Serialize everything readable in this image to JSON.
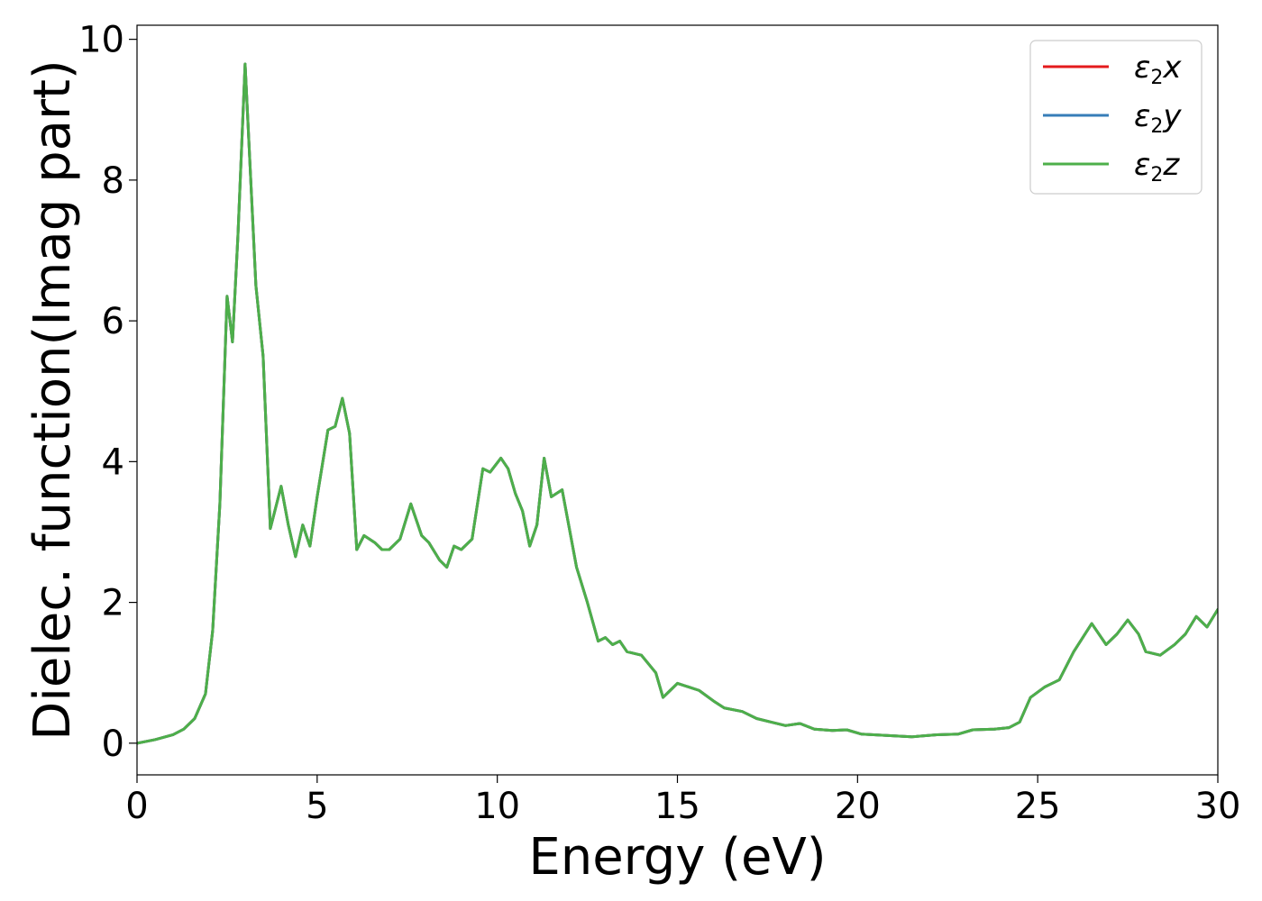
{
  "chart_data": {
    "type": "line",
    "title": "",
    "xlabel": "Energy (eV)",
    "ylabel": "Dielec. function(Imag part)",
    "xlim": [
      0,
      30
    ],
    "ylim": [
      -0.45,
      10.2
    ],
    "xticks": [
      0,
      5,
      10,
      15,
      20,
      25,
      30
    ],
    "xtick_labels": [
      "0",
      "5",
      "10",
      "15",
      "20",
      "25",
      "30"
    ],
    "yticks": [
      0,
      2,
      4,
      6,
      8,
      10
    ],
    "ytick_labels": [
      "0",
      "2",
      "4",
      "6",
      "8",
      "10"
    ],
    "grid": false,
    "legend_position": "top-right",
    "x": [
      0,
      0.5,
      1.0,
      1.3,
      1.6,
      1.9,
      2.1,
      2.3,
      2.5,
      2.65,
      2.8,
      3.0,
      3.3,
      3.5,
      3.7,
      4.0,
      4.2,
      4.4,
      4.6,
      4.8,
      5.0,
      5.3,
      5.5,
      5.7,
      5.9,
      6.1,
      6.3,
      6.6,
      6.8,
      7.0,
      7.3,
      7.6,
      7.9,
      8.1,
      8.4,
      8.6,
      8.8,
      9.0,
      9.3,
      9.6,
      9.8,
      10.1,
      10.3,
      10.5,
      10.7,
      10.9,
      11.1,
      11.3,
      11.5,
      11.8,
      12.0,
      12.2,
      12.5,
      12.8,
      13.0,
      13.2,
      13.4,
      13.6,
      14.0,
      14.4,
      14.6,
      14.8,
      15.0,
      15.3,
      15.6,
      16.0,
      16.3,
      16.8,
      17.2,
      17.6,
      18.0,
      18.4,
      18.8,
      19.3,
      19.7,
      20.1,
      20.8,
      21.5,
      22.2,
      22.8,
      23.2,
      23.8,
      24.2,
      24.5,
      24.8,
      25.2,
      25.6,
      26.0,
      26.5,
      26.9,
      27.2,
      27.5,
      27.8,
      28.0,
      28.4,
      28.8,
      29.1,
      29.4,
      29.7,
      30.0
    ],
    "series": [
      {
        "name": "ε₂x",
        "label_main": "ε",
        "label_sub": "2",
        "label_tail": "x",
        "color": "#e41a1c",
        "values": [
          0,
          0.05,
          0.12,
          0.2,
          0.35,
          0.7,
          1.6,
          3.4,
          6.35,
          5.7,
          7.2,
          9.65,
          6.5,
          5.5,
          3.05,
          3.65,
          3.1,
          2.65,
          3.1,
          2.8,
          3.5,
          4.45,
          4.5,
          4.9,
          4.4,
          2.75,
          2.95,
          2.85,
          2.75,
          2.75,
          2.9,
          3.4,
          2.95,
          2.85,
          2.6,
          2.5,
          2.8,
          2.75,
          2.9,
          3.9,
          3.85,
          4.05,
          3.9,
          3.55,
          3.3,
          2.8,
          3.1,
          4.05,
          3.5,
          3.6,
          3.05,
          2.5,
          2.0,
          1.45,
          1.5,
          1.4,
          1.45,
          1.3,
          1.25,
          1.0,
          0.65,
          0.75,
          0.85,
          0.8,
          0.75,
          0.6,
          0.5,
          0.45,
          0.35,
          0.3,
          0.25,
          0.28,
          0.2,
          0.18,
          0.19,
          0.13,
          0.11,
          0.09,
          0.12,
          0.13,
          0.19,
          0.2,
          0.22,
          0.3,
          0.65,
          0.8,
          0.9,
          1.3,
          1.7,
          1.4,
          1.55,
          1.75,
          1.55,
          1.3,
          1.25,
          1.4,
          1.55,
          1.8,
          1.65,
          1.9
        ]
      },
      {
        "name": "ε₂y",
        "label_main": "ε",
        "label_sub": "2",
        "label_tail": "y",
        "color": "#377eb8",
        "values": [
          0,
          0.05,
          0.12,
          0.2,
          0.35,
          0.7,
          1.6,
          3.4,
          6.35,
          5.7,
          7.2,
          9.65,
          6.5,
          5.5,
          3.05,
          3.65,
          3.1,
          2.65,
          3.1,
          2.8,
          3.5,
          4.45,
          4.5,
          4.9,
          4.4,
          2.75,
          2.95,
          2.85,
          2.75,
          2.75,
          2.9,
          3.4,
          2.95,
          2.85,
          2.6,
          2.5,
          2.8,
          2.75,
          2.9,
          3.9,
          3.85,
          4.05,
          3.9,
          3.55,
          3.3,
          2.8,
          3.1,
          4.05,
          3.5,
          3.6,
          3.05,
          2.5,
          2.0,
          1.45,
          1.5,
          1.4,
          1.45,
          1.3,
          1.25,
          1.0,
          0.65,
          0.75,
          0.85,
          0.8,
          0.75,
          0.6,
          0.5,
          0.45,
          0.35,
          0.3,
          0.25,
          0.28,
          0.2,
          0.18,
          0.19,
          0.13,
          0.11,
          0.09,
          0.12,
          0.13,
          0.19,
          0.2,
          0.22,
          0.3,
          0.65,
          0.8,
          0.9,
          1.3,
          1.7,
          1.4,
          1.55,
          1.75,
          1.55,
          1.3,
          1.25,
          1.4,
          1.55,
          1.8,
          1.65,
          1.9
        ]
      },
      {
        "name": "ε₂z",
        "label_main": "ε",
        "label_sub": "2",
        "label_tail": "z",
        "color": "#4daf4a",
        "values": [
          0,
          0.05,
          0.12,
          0.2,
          0.35,
          0.7,
          1.6,
          3.4,
          6.35,
          5.7,
          7.2,
          9.65,
          6.5,
          5.5,
          3.05,
          3.65,
          3.1,
          2.65,
          3.1,
          2.8,
          3.5,
          4.45,
          4.5,
          4.9,
          4.4,
          2.75,
          2.95,
          2.85,
          2.75,
          2.75,
          2.9,
          3.4,
          2.95,
          2.85,
          2.6,
          2.5,
          2.8,
          2.75,
          2.9,
          3.9,
          3.85,
          4.05,
          3.9,
          3.55,
          3.3,
          2.8,
          3.1,
          4.05,
          3.5,
          3.6,
          3.05,
          2.5,
          2.0,
          1.45,
          1.5,
          1.4,
          1.45,
          1.3,
          1.25,
          1.0,
          0.65,
          0.75,
          0.85,
          0.8,
          0.75,
          0.6,
          0.5,
          0.45,
          0.35,
          0.3,
          0.25,
          0.28,
          0.2,
          0.18,
          0.19,
          0.13,
          0.11,
          0.09,
          0.12,
          0.13,
          0.19,
          0.2,
          0.22,
          0.3,
          0.65,
          0.8,
          0.9,
          1.3,
          1.7,
          1.4,
          1.55,
          1.75,
          1.55,
          1.3,
          1.25,
          1.4,
          1.55,
          1.8,
          1.65,
          1.9
        ]
      }
    ]
  }
}
